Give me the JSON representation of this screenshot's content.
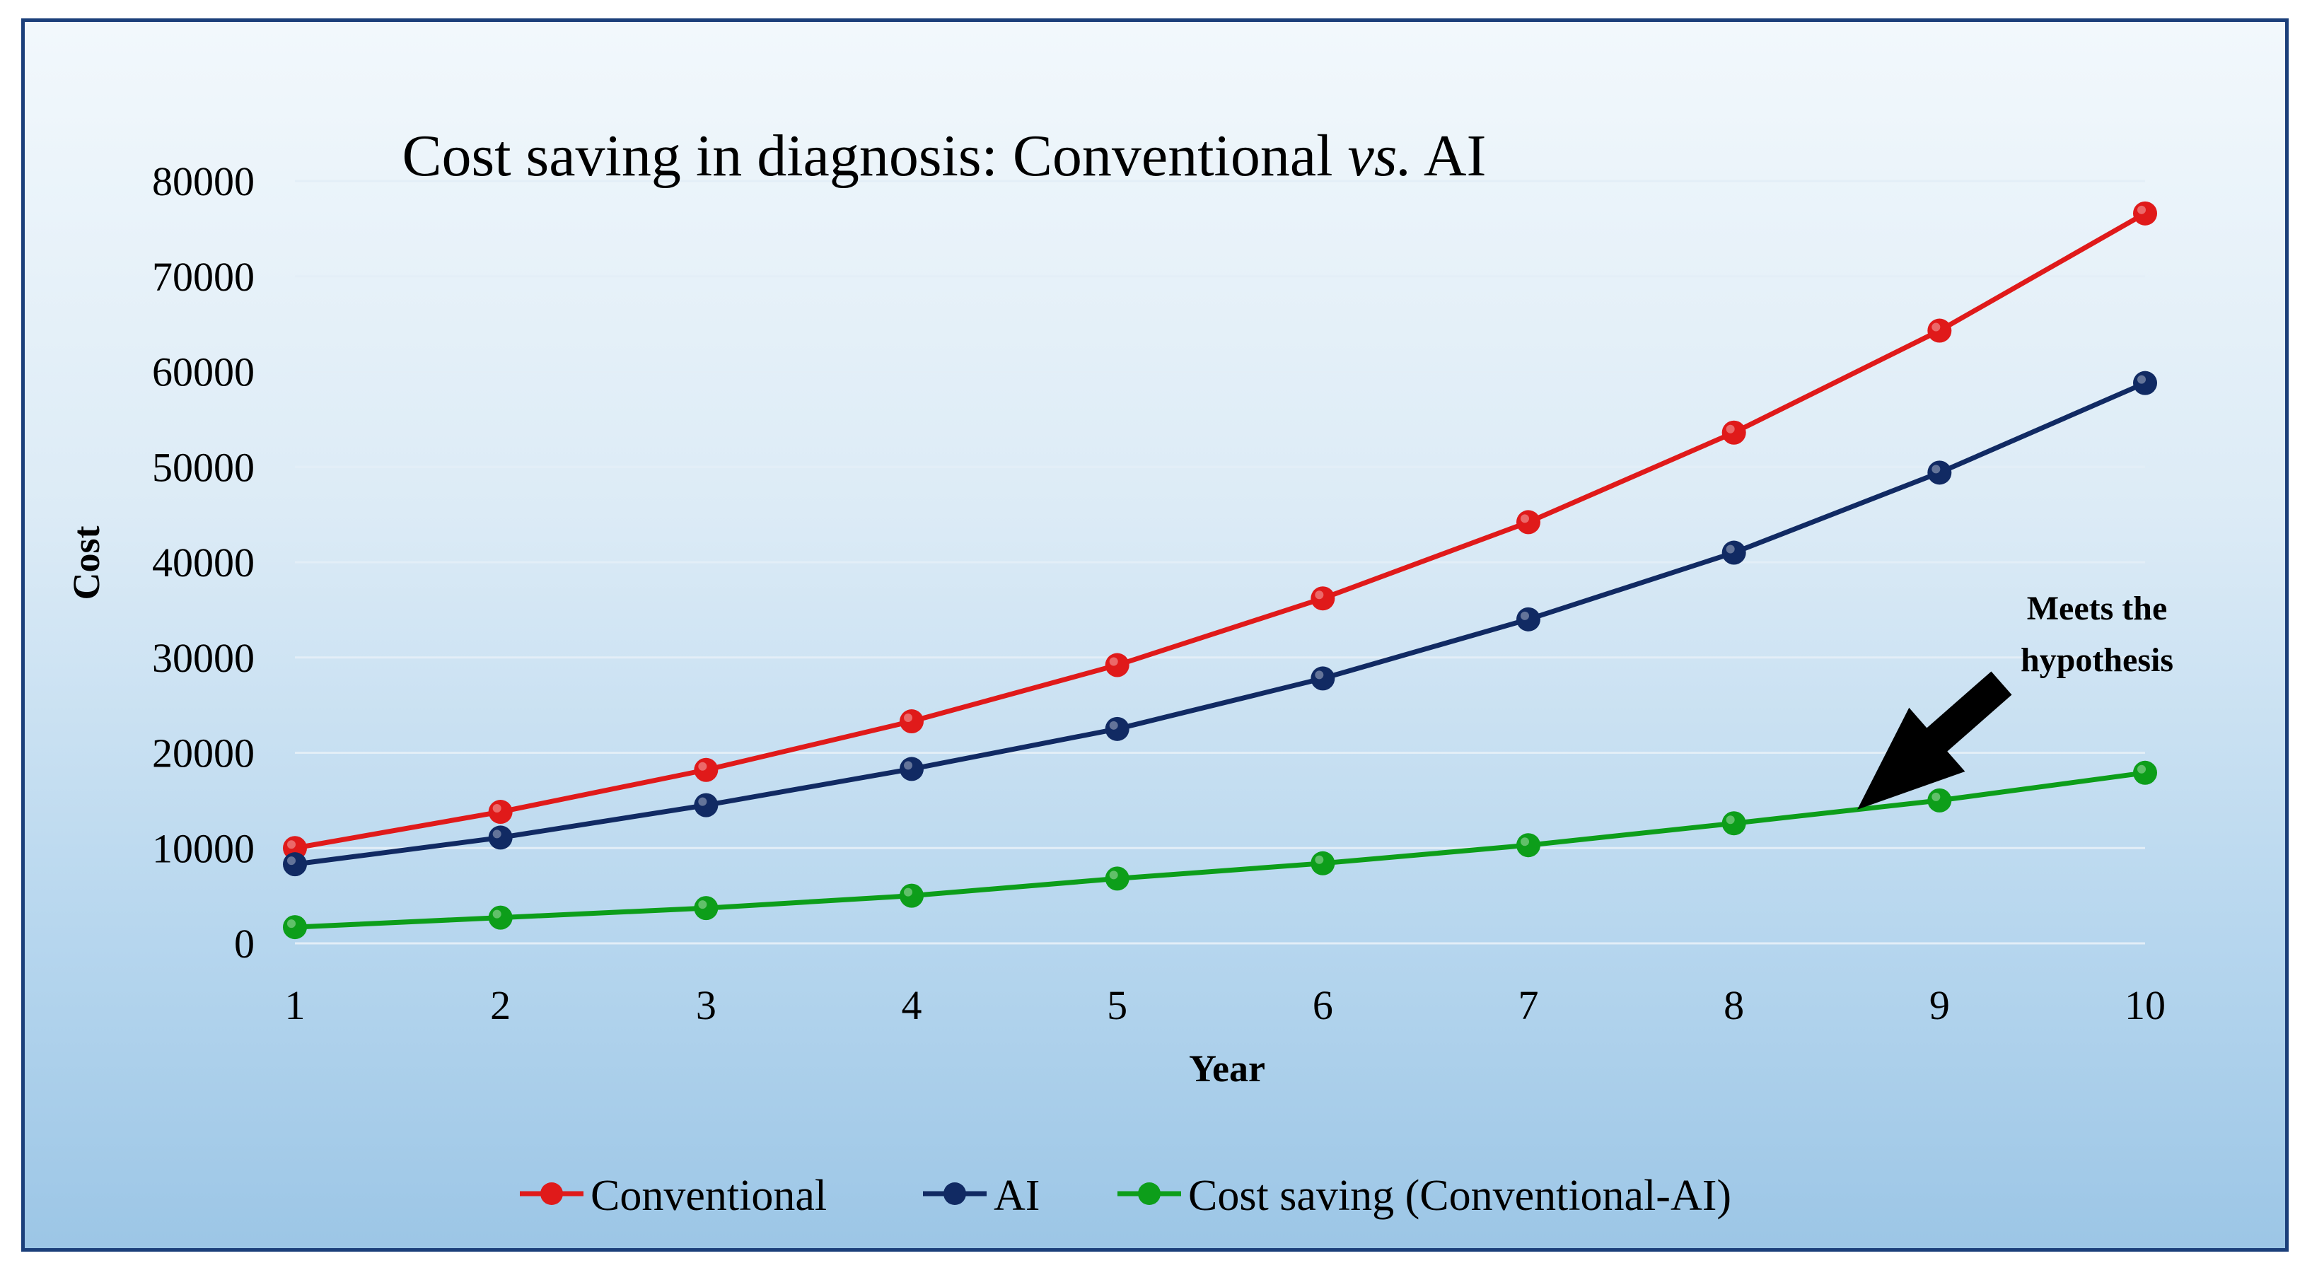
{
  "chart_data": {
    "type": "line",
    "title_parts": [
      "Cost saving in diagnosis: Conventional ",
      "vs.",
      " AI"
    ],
    "xlabel": "Year",
    "ylabel": "Cost",
    "x": [
      1,
      2,
      3,
      4,
      5,
      6,
      7,
      8,
      9,
      10
    ],
    "ylim": [
      0,
      80000
    ],
    "yticks": [
      0,
      10000,
      20000,
      30000,
      40000,
      50000,
      60000,
      70000,
      80000
    ],
    "grid": true,
    "legend_position": "bottom",
    "series": [
      {
        "name": "Conventional",
        "color": "#e01a1a",
        "values": [
          10000,
          13800,
          18200,
          23300,
          29200,
          36200,
          44200,
          53600,
          64300,
          76600
        ]
      },
      {
        "name": "AI",
        "color": "#112a63",
        "values": [
          8300,
          11100,
          14500,
          18300,
          22500,
          27800,
          34000,
          41000,
          49400,
          58800
        ]
      },
      {
        "name": "Cost saving (Conventional-AI)",
        "color": "#0d9e1a",
        "values": [
          1700,
          2700,
          3700,
          5000,
          6800,
          8400,
          10300,
          12600,
          15000,
          17900
        ]
      }
    ],
    "annotation": {
      "lines": [
        "Meets the",
        "hypothesis"
      ],
      "arrow_to_year": 8.6
    }
  }
}
